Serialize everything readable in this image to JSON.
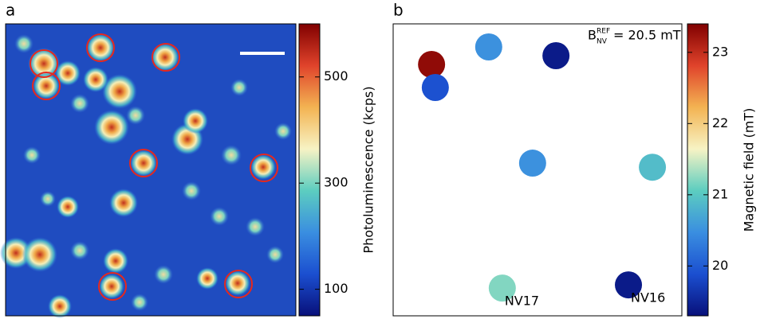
{
  "chart_data": [
    {
      "type": "heatmap",
      "panel": "a",
      "colorbar_label": "Photoluminescence (kcps)",
      "clim": [
        50,
        600
      ],
      "cticks": [
        100,
        300,
        500
      ],
      "colormap": [
        "#08107a",
        "#1b4fd0",
        "#3a8ee0",
        "#5ccdc0",
        "#f7f3c4",
        "#f3b352",
        "#e0432b",
        "#800000"
      ]
    },
    {
      "type": "scatter",
      "panel": "b",
      "colorbar_label": "Magnetic field (mT)",
      "annotation": {
        "base": "B",
        "sup": "REF",
        "sub": "NV",
        "text": "= 20.5 mT"
      },
      "xlim": [
        0,
        100
      ],
      "ylim": [
        0,
        100
      ],
      "x": [
        13.3,
        14.6,
        33.1,
        56.4,
        48.3,
        89.8,
        37.8,
        81.5
      ],
      "y": [
        86.1,
        78.2,
        92.1,
        89.1,
        52.3,
        50.9,
        9.5,
        10.6
      ],
      "values": [
        23.3,
        19.9,
        20.5,
        19.4,
        20.5,
        20.9,
        21.2,
        19.4
      ],
      "point_labels": [
        null,
        null,
        null,
        null,
        null,
        null,
        "NV17",
        "NV16"
      ],
      "clim": [
        19.3,
        23.4
      ],
      "cticks": [
        20,
        21,
        22,
        23
      ],
      "colormap": [
        "#08107a",
        "#1b4fd0",
        "#3a8ee0",
        "#5ccdc0",
        "#f7f3c4",
        "#f3b352",
        "#e0432b",
        "#800000"
      ]
    }
  ]
}
